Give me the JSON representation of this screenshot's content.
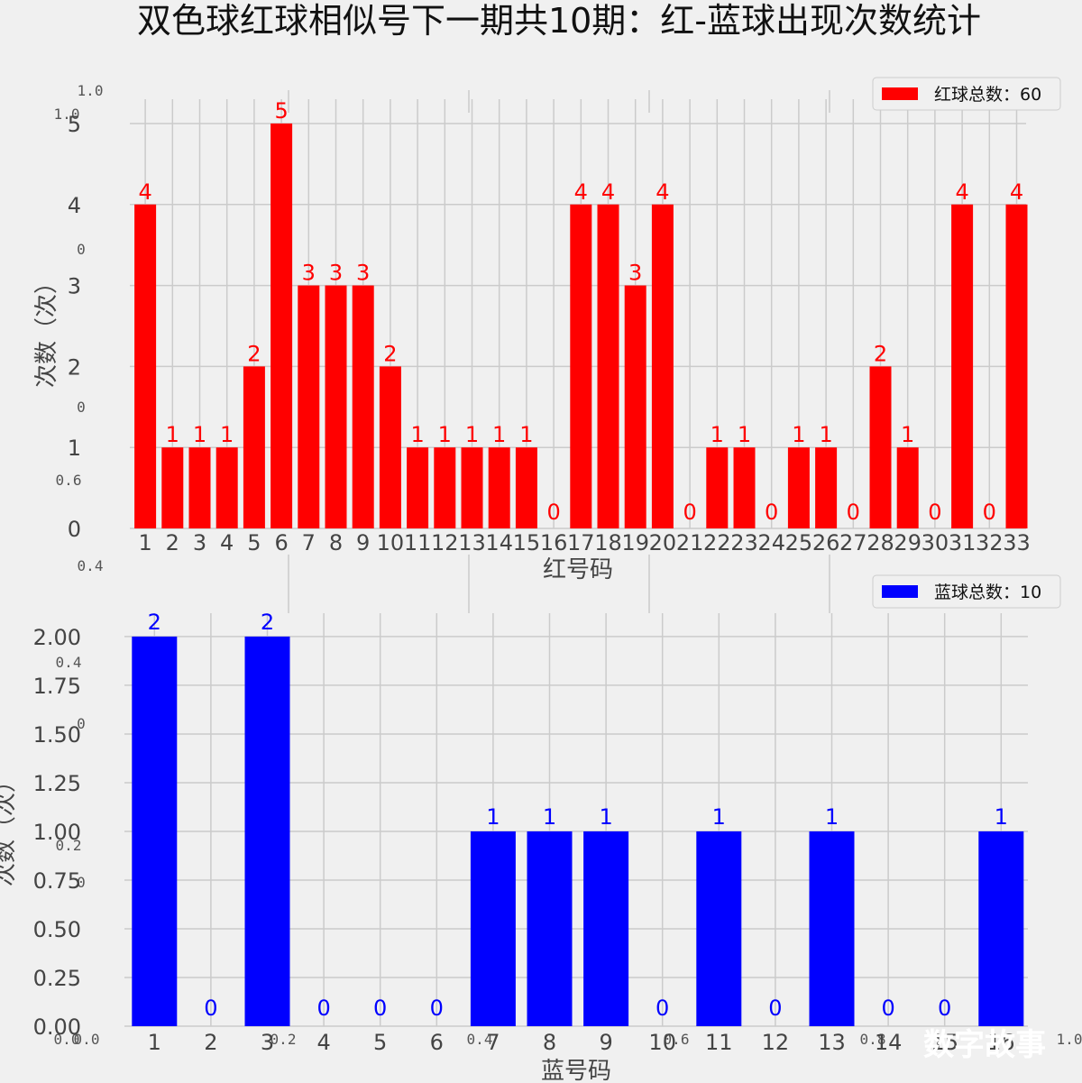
{
  "colors": {
    "red": "#ff0000",
    "blue": "#0000ff",
    "grid": "#cbcbcb",
    "background": "#f0f0f0"
  },
  "title": "双色球红球相似号下一期共10期：红-蓝球出现次数统计",
  "watermark": "数字故事",
  "background_ticks": {
    "top": [
      "1.0",
      "1.0"
    ],
    "left": [
      "0",
      "0",
      "0.6",
      "0.4",
      "0.4",
      "0",
      "0.2",
      "0"
    ],
    "bottom": [
      "0.0",
      "0.0",
      "0.2",
      "0.4",
      "0.6",
      "0.8",
      "1.0"
    ]
  },
  "chart_data": [
    {
      "type": "bar",
      "name": "red",
      "categories": [
        "1",
        "2",
        "3",
        "4",
        "5",
        "6",
        "7",
        "8",
        "9",
        "10",
        "11",
        "12",
        "13",
        "14",
        "15",
        "16",
        "17",
        "18",
        "19",
        "20",
        "21",
        "22",
        "23",
        "24",
        "25",
        "26",
        "27",
        "28",
        "29",
        "30",
        "31",
        "32",
        "33"
      ],
      "values": [
        4,
        1,
        1,
        1,
        2,
        5,
        3,
        3,
        3,
        2,
        1,
        1,
        1,
        1,
        1,
        0,
        4,
        4,
        3,
        4,
        0,
        1,
        1,
        0,
        1,
        1,
        0,
        2,
        1,
        0,
        4,
        0,
        4
      ],
      "xlabel": "红号码",
      "ylabel": "次数（次）",
      "ylim": [
        0,
        5.3
      ],
      "yticks": [
        0,
        1,
        2,
        3,
        4,
        5
      ],
      "ytick_labels": [
        "0",
        "1",
        "2",
        "3",
        "4",
        "5"
      ],
      "legend": "红球总数：60",
      "legend_position": "top-right",
      "grid": true
    },
    {
      "type": "bar",
      "name": "blue",
      "categories": [
        "1",
        "2",
        "3",
        "4",
        "5",
        "6",
        "7",
        "8",
        "9",
        "10",
        "11",
        "12",
        "13",
        "14",
        "15",
        "16"
      ],
      "values": [
        2,
        0,
        2,
        0,
        0,
        0,
        1,
        1,
        1,
        0,
        1,
        0,
        1,
        0,
        0,
        1
      ],
      "xlabel": "蓝号码",
      "ylabel": "次数（次）",
      "ylim": [
        0,
        2.12
      ],
      "yticks": [
        0,
        0.25,
        0.5,
        0.75,
        1.0,
        1.25,
        1.5,
        1.75,
        2.0
      ],
      "ytick_labels": [
        "0.00",
        "0.25",
        "0.50",
        "0.75",
        "1.00",
        "1.25",
        "1.50",
        "1.75",
        "2.00"
      ],
      "legend": "蓝球总数：10",
      "legend_position": "top-right",
      "grid": true
    }
  ]
}
